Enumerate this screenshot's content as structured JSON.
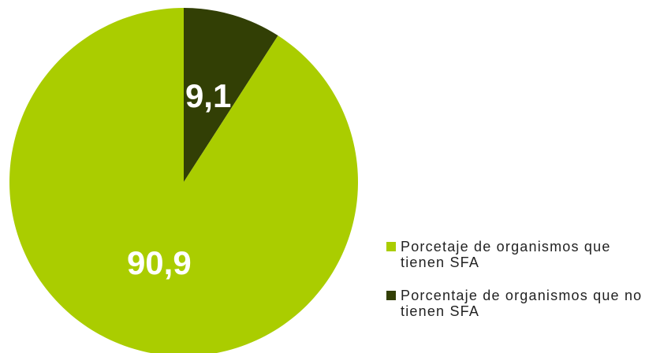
{
  "chart_data": {
    "type": "pie",
    "categories": [
      "Porcentaje de organismos que no tienen SFA",
      "Porcetaje de organismos  que tienen SFA"
    ],
    "values": [
      9.1,
      90.9
    ],
    "value_labels": [
      "9,1",
      "90,9"
    ],
    "colors": [
      "#323f05",
      "#aacd00"
    ],
    "legend": "right",
    "legend_order": [
      1,
      0
    ]
  }
}
